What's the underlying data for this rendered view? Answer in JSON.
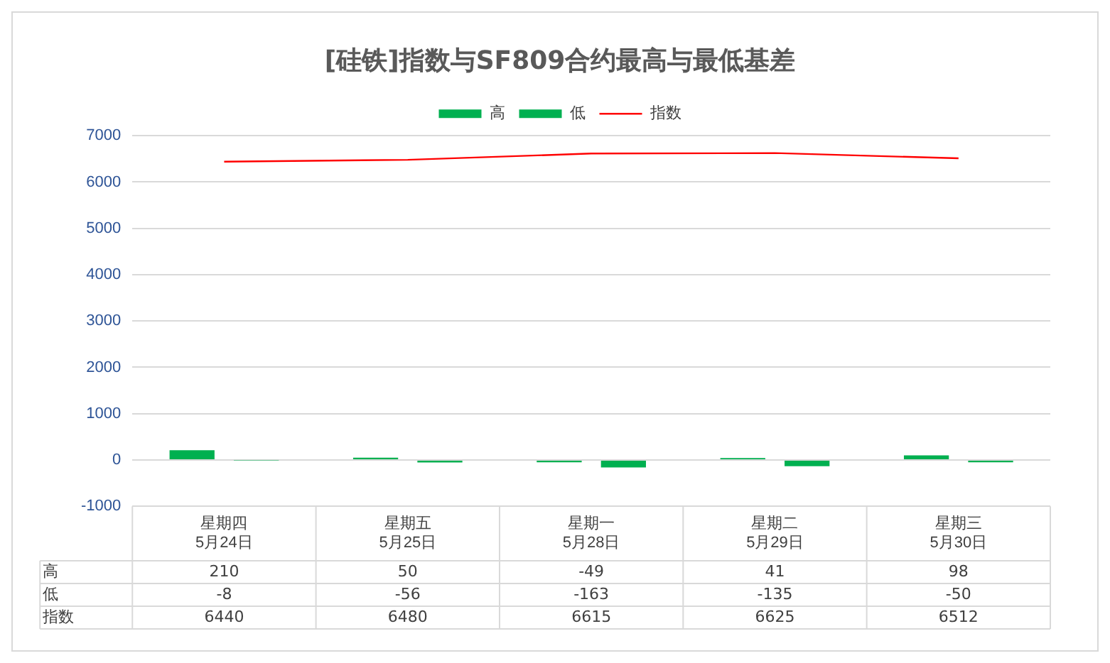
{
  "chart_data": {
    "type": "bar",
    "title": "[硅铁]指数与SF809合约最高与最低基差",
    "categories": [
      "星期四\n5月24日",
      "星期五\n5月25日",
      "星期一\n5月28日",
      "星期二\n5月29日",
      "星期三\n5月30日"
    ],
    "series": [
      {
        "name": "高",
        "color": "#00b050",
        "values": [
          210,
          50,
          -49,
          41,
          98
        ]
      },
      {
        "name": "低",
        "color": "#00b050",
        "values": [
          -8,
          -56,
          -163,
          -135,
          -50
        ]
      },
      {
        "name": "指数",
        "type": "line",
        "color": "#ff0000",
        "values": [
          6440,
          6480,
          6615,
          6625,
          6512
        ]
      }
    ],
    "ylim": [
      -1000,
      7000
    ],
    "yticks": [
      -1000,
      0,
      1000,
      2000,
      3000,
      4000,
      5000,
      6000,
      7000
    ],
    "grid": "y",
    "legend": "top",
    "marker": "none",
    "data_labels": true
  }
}
